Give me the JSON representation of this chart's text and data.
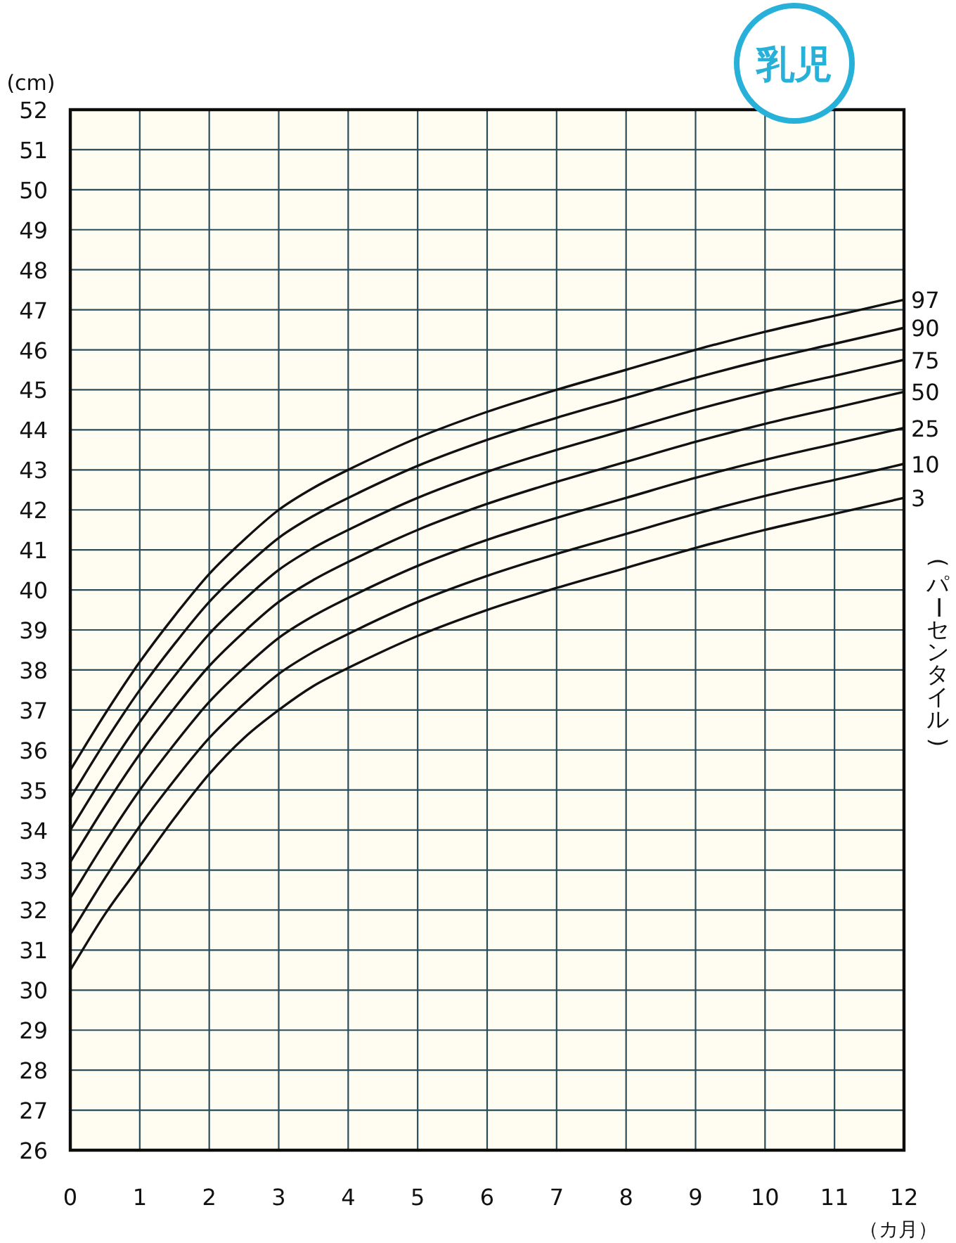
{
  "chart_data": {
    "type": "line",
    "title": "乳児",
    "xlabel": "（カ月）",
    "ylabel": "(cm)",
    "legend_title": "(パーセンタイル)",
    "x": [
      0,
      0.5,
      1,
      1.5,
      2,
      2.5,
      3,
      3.5,
      4,
      5,
      6,
      7,
      8,
      9,
      10,
      11,
      12
    ],
    "series": [
      {
        "name": "97",
        "color": "#111111",
        "values": [
          35.5,
          36.9,
          38.2,
          39.35,
          40.4,
          41.25,
          42.0,
          42.55,
          43.0,
          43.8,
          44.45,
          45.0,
          45.5,
          46.0,
          46.45,
          46.85,
          47.25
        ]
      },
      {
        "name": "90",
        "color": "#111111",
        "values": [
          34.8,
          36.2,
          37.5,
          38.65,
          39.7,
          40.55,
          41.3,
          41.85,
          42.3,
          43.1,
          43.75,
          44.3,
          44.8,
          45.3,
          45.75,
          46.15,
          46.55
        ]
      },
      {
        "name": "75",
        "color": "#111111",
        "values": [
          34.0,
          35.4,
          36.7,
          37.85,
          38.9,
          39.75,
          40.5,
          41.05,
          41.5,
          42.3,
          42.95,
          43.5,
          44.0,
          44.5,
          44.95,
          45.35,
          45.75
        ]
      },
      {
        "name": "50",
        "color": "#111111",
        "values": [
          33.2,
          34.6,
          35.9,
          37.05,
          38.1,
          38.95,
          39.7,
          40.25,
          40.7,
          41.5,
          42.15,
          42.7,
          43.2,
          43.7,
          44.15,
          44.55,
          44.95
        ]
      },
      {
        "name": "25",
        "color": "#111111",
        "values": [
          32.3,
          33.7,
          35.0,
          36.15,
          37.2,
          38.05,
          38.8,
          39.35,
          39.8,
          40.6,
          41.25,
          41.8,
          42.3,
          42.8,
          43.25,
          43.65,
          44.05
        ]
      },
      {
        "name": "10",
        "color": "#111111",
        "values": [
          31.4,
          32.8,
          34.1,
          35.25,
          36.3,
          37.15,
          37.9,
          38.45,
          38.9,
          39.7,
          40.35,
          40.9,
          41.4,
          41.9,
          42.35,
          42.75,
          43.15
        ]
      },
      {
        "name": "3",
        "color": "#111111",
        "values": [
          30.5,
          31.9,
          33.1,
          34.3,
          35.4,
          36.3,
          37.0,
          37.6,
          38.05,
          38.85,
          39.5,
          40.05,
          40.55,
          41.05,
          41.5,
          41.9,
          42.3
        ]
      }
    ],
    "xlim": [
      0,
      12
    ],
    "ylim": [
      26,
      52
    ],
    "xticks": [
      0,
      1,
      2,
      3,
      4,
      5,
      6,
      7,
      8,
      9,
      10,
      11,
      12
    ],
    "yticks": [
      26,
      27,
      28,
      29,
      30,
      31,
      32,
      33,
      34,
      35,
      36,
      37,
      38,
      39,
      40,
      41,
      42,
      43,
      44,
      45,
      46,
      47,
      48,
      49,
      50,
      51,
      52
    ],
    "grid": true,
    "line_style": "solid"
  }
}
